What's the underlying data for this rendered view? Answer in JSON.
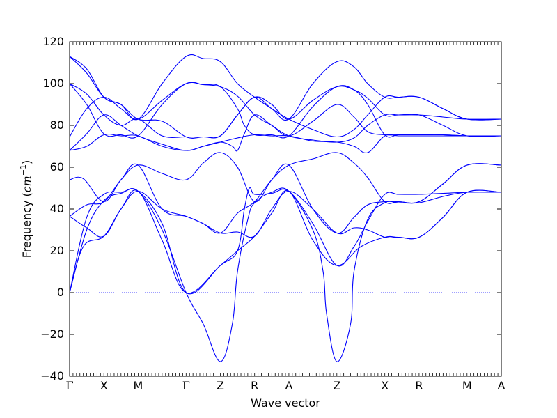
{
  "chart_data": {
    "type": "line",
    "xlabel": "Wave vector",
    "ylabel": "Frequency (",
    "ylabel_unit": "cm",
    "ylabel_unit_exp": "−1",
    "ylabel_close": ")",
    "ylim": [
      -40,
      120
    ],
    "xlim": [
      0,
      12.6
    ],
    "yticks": [
      -40,
      -20,
      0,
      20,
      40,
      60,
      80,
      100,
      120
    ],
    "ytick_labels": [
      "−40",
      "−20",
      "0",
      "20",
      "40",
      "60",
      "80",
      "100",
      "120"
    ],
    "high_symmetry_points": [
      {
        "label": "Γ",
        "x": 0
      },
      {
        "label": "X",
        "x": 1
      },
      {
        "label": "M",
        "x": 2
      },
      {
        "label": "Γ",
        "x": 3.4
      },
      {
        "label": "Z",
        "x": 4.4
      },
      {
        "label": "R",
        "x": 5.4
      },
      {
        "label": "A",
        "x": 6.4
      },
      {
        "label": "Z",
        "x": 7.8
      },
      {
        "label": "X",
        "x": 9.2
      },
      {
        "label": "R",
        "x": 10.2
      },
      {
        "label": "M",
        "x": 11.6
      },
      {
        "label": "A",
        "x": 12.6
      }
    ],
    "zero_line": true,
    "grid": false,
    "line_color": "#0000ff",
    "series": [
      {
        "points": [
          [
            0,
            0
          ],
          [
            0.4,
            22
          ],
          [
            1,
            27
          ],
          [
            1.5,
            40
          ],
          [
            2,
            48.5
          ],
          [
            2.7,
            25
          ],
          [
            3.4,
            0
          ],
          [
            4.4,
            13
          ],
          [
            4.9,
            20
          ],
          [
            5.4,
            27
          ],
          [
            5.9,
            38
          ],
          [
            6.4,
            48.5
          ],
          [
            7.1,
            25
          ],
          [
            7.8,
            13
          ],
          [
            8.5,
            22
          ],
          [
            9.2,
            26.5
          ],
          [
            9.6,
            26.5
          ],
          [
            10.2,
            26.5
          ],
          [
            10.9,
            36
          ],
          [
            11.6,
            48
          ],
          [
            12.6,
            48
          ]
        ]
      },
      {
        "points": [
          [
            0,
            0
          ],
          [
            0.5,
            30
          ],
          [
            1,
            44
          ],
          [
            1.5,
            47.5
          ],
          [
            2,
            48.5
          ],
          [
            2.7,
            30
          ],
          [
            3.4,
            0
          ],
          [
            3.9,
            -15
          ],
          [
            4.4,
            -33
          ],
          [
            4.75,
            -15
          ],
          [
            4.9,
            10
          ],
          [
            5.2,
            35
          ],
          [
            5.4,
            43
          ],
          [
            5.9,
            48
          ],
          [
            6.4,
            48.5
          ],
          [
            7.1,
            30
          ],
          [
            7.4,
            10
          ],
          [
            7.5,
            -10
          ],
          [
            7.8,
            -33
          ],
          [
            8.2,
            -15
          ],
          [
            8.3,
            10
          ],
          [
            8.7,
            35
          ],
          [
            9.2,
            43
          ],
          [
            9.6,
            43
          ],
          [
            10.2,
            43
          ],
          [
            10.9,
            46
          ],
          [
            11.6,
            48
          ],
          [
            12.6,
            48
          ]
        ]
      },
      {
        "points": [
          [
            0,
            0
          ],
          [
            0.5,
            36
          ],
          [
            1,
            47
          ],
          [
            1.5,
            48
          ],
          [
            2,
            48.5
          ],
          [
            2.7,
            33
          ],
          [
            3.4,
            0
          ],
          [
            4.4,
            13
          ],
          [
            4.9,
            20
          ],
          [
            5.1,
            40
          ],
          [
            5.25,
            50
          ],
          [
            5.4,
            47
          ],
          [
            5.9,
            47.5
          ],
          [
            6.4,
            48.5
          ],
          [
            7.1,
            33
          ],
          [
            7.8,
            13
          ],
          [
            8.3,
            22
          ],
          [
            8.7,
            34
          ],
          [
            9.2,
            47
          ],
          [
            9.6,
            47
          ],
          [
            10.2,
            47
          ],
          [
            10.9,
            47.5
          ],
          [
            11.6,
            48
          ],
          [
            12.6,
            48
          ]
        ]
      },
      {
        "points": [
          [
            0,
            36.5
          ],
          [
            0.5,
            31
          ],
          [
            1,
            27
          ],
          [
            1.5,
            40
          ],
          [
            2,
            48.5
          ],
          [
            2.7,
            40
          ],
          [
            3.4,
            36.5
          ],
          [
            3.9,
            33
          ],
          [
            4.4,
            28.5
          ],
          [
            4.9,
            29
          ],
          [
            5.4,
            27
          ],
          [
            5.9,
            40
          ],
          [
            6.4,
            48.5
          ],
          [
            7.1,
            40
          ],
          [
            7.8,
            28.5
          ],
          [
            8.3,
            31
          ],
          [
            8.7,
            30
          ],
          [
            9.2,
            26.5
          ],
          [
            9.6,
            26.5
          ],
          [
            10.2,
            26.5
          ],
          [
            10.9,
            36
          ],
          [
            11.6,
            48
          ],
          [
            12.6,
            48
          ]
        ]
      },
      {
        "points": [
          [
            0,
            36.5
          ],
          [
            0.5,
            42
          ],
          [
            1,
            43.5
          ],
          [
            1.5,
            54
          ],
          [
            2,
            61
          ],
          [
            2.7,
            40
          ],
          [
            3.4,
            36.5
          ],
          [
            3.9,
            33
          ],
          [
            4.4,
            28.5
          ],
          [
            4.9,
            38
          ],
          [
            5.4,
            43.5
          ],
          [
            5.9,
            54
          ],
          [
            6.4,
            61
          ],
          [
            7.1,
            40
          ],
          [
            7.8,
            28.5
          ],
          [
            8.3,
            36
          ],
          [
            8.7,
            42
          ],
          [
            9.2,
            43.5
          ],
          [
            9.6,
            43.5
          ],
          [
            10.2,
            43.5
          ],
          [
            10.9,
            52
          ],
          [
            11.6,
            61
          ],
          [
            12.6,
            61
          ]
        ]
      },
      {
        "points": [
          [
            0,
            54
          ],
          [
            0.4,
            54.5
          ],
          [
            1,
            43.5
          ],
          [
            1.5,
            54
          ],
          [
            2,
            61
          ],
          [
            2.7,
            57
          ],
          [
            3.4,
            54
          ],
          [
            3.9,
            62
          ],
          [
            4.4,
            67
          ],
          [
            4.9,
            60
          ],
          [
            5.4,
            43.5
          ],
          [
            5.9,
            54
          ],
          [
            6.4,
            61
          ],
          [
            7.1,
            64
          ],
          [
            7.8,
            67
          ],
          [
            8.3,
            62
          ],
          [
            8.7,
            55
          ],
          [
            9.2,
            43.5
          ],
          [
            9.6,
            43.5
          ],
          [
            10.2,
            43.5
          ],
          [
            10.9,
            52
          ],
          [
            11.6,
            61
          ],
          [
            12.6,
            61
          ]
        ]
      },
      {
        "points": [
          [
            0,
            68
          ],
          [
            0.5,
            70
          ],
          [
            1,
            75.5
          ],
          [
            1.5,
            75
          ],
          [
            2,
            75
          ],
          [
            2.7,
            70
          ],
          [
            3.4,
            68
          ],
          [
            3.9,
            70
          ],
          [
            4.4,
            72
          ],
          [
            4.9,
            74
          ],
          [
            5.4,
            75.5
          ],
          [
            5.9,
            75
          ],
          [
            6.4,
            75
          ],
          [
            7.1,
            72.5
          ],
          [
            7.8,
            72
          ],
          [
            8.3,
            70
          ],
          [
            8.7,
            67
          ],
          [
            9.2,
            75
          ],
          [
            9.6,
            75
          ],
          [
            10.2,
            75
          ],
          [
            10.9,
            75
          ],
          [
            11.6,
            75
          ],
          [
            12.6,
            75
          ]
        ]
      },
      {
        "points": [
          [
            0,
            68
          ],
          [
            0.5,
            76
          ],
          [
            1,
            85
          ],
          [
            1.5,
            80
          ],
          [
            2,
            75
          ],
          [
            2.7,
            71
          ],
          [
            3.4,
            68
          ],
          [
            3.9,
            70
          ],
          [
            4.4,
            72
          ],
          [
            4.75,
            70
          ],
          [
            4.9,
            68
          ],
          [
            5.1,
            76
          ],
          [
            5.4,
            85
          ],
          [
            5.9,
            80
          ],
          [
            6.4,
            75
          ],
          [
            7.1,
            73
          ],
          [
            7.8,
            72
          ],
          [
            8.3,
            74
          ],
          [
            8.7,
            80
          ],
          [
            9.2,
            85
          ],
          [
            9.6,
            85
          ],
          [
            10.2,
            85
          ],
          [
            10.9,
            80
          ],
          [
            11.6,
            75
          ],
          [
            12.6,
            75
          ]
        ]
      },
      {
        "points": [
          [
            0,
            74.5
          ],
          [
            0.5,
            88
          ],
          [
            1,
            93.5
          ],
          [
            1.5,
            88
          ],
          [
            2,
            83
          ],
          [
            2.7,
            92
          ],
          [
            3.4,
            100
          ],
          [
            3.9,
            99.5
          ],
          [
            4.4,
            98.5
          ],
          [
            4.9,
            88
          ],
          [
            5.1,
            80
          ],
          [
            5.4,
            75.5
          ],
          [
            5.9,
            75.5
          ],
          [
            6.4,
            75
          ],
          [
            7.1,
            89
          ],
          [
            7.8,
            98.5
          ],
          [
            8.3,
            97
          ],
          [
            8.7,
            90
          ],
          [
            9.2,
            75.5
          ],
          [
            9.6,
            75.5
          ],
          [
            10.2,
            75.5
          ],
          [
            10.9,
            75.5
          ],
          [
            11.6,
            75
          ],
          [
            12.6,
            75
          ]
        ]
      },
      {
        "points": [
          [
            0,
            100
          ],
          [
            0.5,
            90
          ],
          [
            1,
            76
          ],
          [
            1.5,
            75.5
          ],
          [
            2,
            75
          ],
          [
            2.7,
            90
          ],
          [
            3.4,
            100
          ],
          [
            3.9,
            99.5
          ],
          [
            4.4,
            98.5
          ],
          [
            4.9,
            94
          ],
          [
            5.4,
            85
          ],
          [
            5.9,
            80
          ],
          [
            6.4,
            75
          ],
          [
            7.1,
            82
          ],
          [
            7.8,
            90
          ],
          [
            8.3,
            84
          ],
          [
            8.7,
            77
          ],
          [
            9.2,
            75.5
          ],
          [
            9.6,
            75.5
          ],
          [
            10.2,
            75.5
          ],
          [
            10.9,
            75.5
          ],
          [
            11.6,
            75
          ],
          [
            12.6,
            75
          ]
        ]
      },
      {
        "points": [
          [
            0,
            100
          ],
          [
            0.5,
            95
          ],
          [
            1,
            85
          ],
          [
            1.5,
            80
          ],
          [
            2,
            83
          ],
          [
            2.7,
            75
          ],
          [
            3.4,
            74.5
          ],
          [
            3.9,
            74.5
          ],
          [
            4.4,
            75
          ],
          [
            4.9,
            85
          ],
          [
            5.4,
            93.5
          ],
          [
            5.9,
            90
          ],
          [
            6.4,
            83
          ],
          [
            7.1,
            92
          ],
          [
            7.8,
            98.5
          ],
          [
            8.3,
            97
          ],
          [
            8.7,
            93
          ],
          [
            9.2,
            85
          ],
          [
            9.6,
            85
          ],
          [
            10.2,
            85
          ],
          [
            10.9,
            84
          ],
          [
            11.6,
            83
          ],
          [
            12.6,
            83
          ]
        ]
      },
      {
        "points": [
          [
            0,
            113
          ],
          [
            0.5,
            107
          ],
          [
            1,
            93.5
          ],
          [
            1.5,
            90
          ],
          [
            2,
            83
          ],
          [
            2.7,
            82
          ],
          [
            3.4,
            74.5
          ],
          [
            3.9,
            74.5
          ],
          [
            4.4,
            75
          ],
          [
            4.9,
            85
          ],
          [
            5.4,
            93.5
          ],
          [
            5.9,
            88
          ],
          [
            6.4,
            83
          ],
          [
            7.1,
            78
          ],
          [
            7.8,
            74.5
          ],
          [
            8.3,
            78
          ],
          [
            8.7,
            85
          ],
          [
            9.2,
            93.5
          ],
          [
            9.6,
            93.5
          ],
          [
            10.2,
            93.5
          ],
          [
            10.9,
            88
          ],
          [
            11.6,
            83
          ],
          [
            12.6,
            83
          ]
        ]
      },
      {
        "points": [
          [
            0,
            113
          ],
          [
            0.5,
            105
          ],
          [
            1,
            93.5
          ],
          [
            1.5,
            90
          ],
          [
            2,
            83
          ],
          [
            2.7,
            100
          ],
          [
            3.4,
            113
          ],
          [
            3.9,
            112
          ],
          [
            4.4,
            110.5
          ],
          [
            4.9,
            100
          ],
          [
            5.4,
            93.5
          ],
          [
            5.9,
            88
          ],
          [
            6.4,
            83
          ],
          [
            7.1,
            100
          ],
          [
            7.8,
            110.5
          ],
          [
            8.3,
            108
          ],
          [
            8.7,
            100
          ],
          [
            9.2,
            93.5
          ],
          [
            9.6,
            93.5
          ],
          [
            10.2,
            93.5
          ],
          [
            10.9,
            88
          ],
          [
            11.6,
            83
          ],
          [
            12.6,
            83
          ]
        ]
      }
    ]
  }
}
